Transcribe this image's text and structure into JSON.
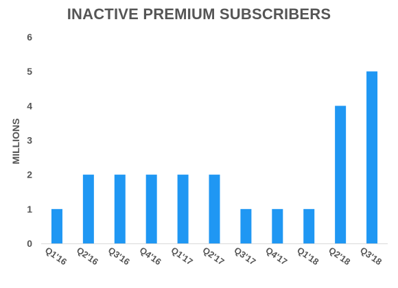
{
  "chart_data": {
    "type": "bar",
    "title": "INACTIVE PREMIUM SUBSCRIBERS",
    "ylabel": "MILLIONS",
    "xlabel": "",
    "categories": [
      "Q1'16",
      "Q2'16",
      "Q3'16",
      "Q4'16",
      "Q1'17",
      "Q2'17",
      "Q3'17",
      "Q4'17",
      "Q1'18",
      "Q2'18",
      "Q3'18"
    ],
    "values": [
      1,
      2,
      2,
      2,
      2,
      2,
      1,
      1,
      1,
      4,
      5
    ],
    "ylim": [
      0,
      6
    ],
    "yticks": [
      "0",
      "1",
      "2",
      "3",
      "4",
      "5",
      "6"
    ],
    "grid": false,
    "colors": {
      "bar": "#1f97f3",
      "text": "#555555",
      "axis": "#d9d9d9"
    }
  }
}
